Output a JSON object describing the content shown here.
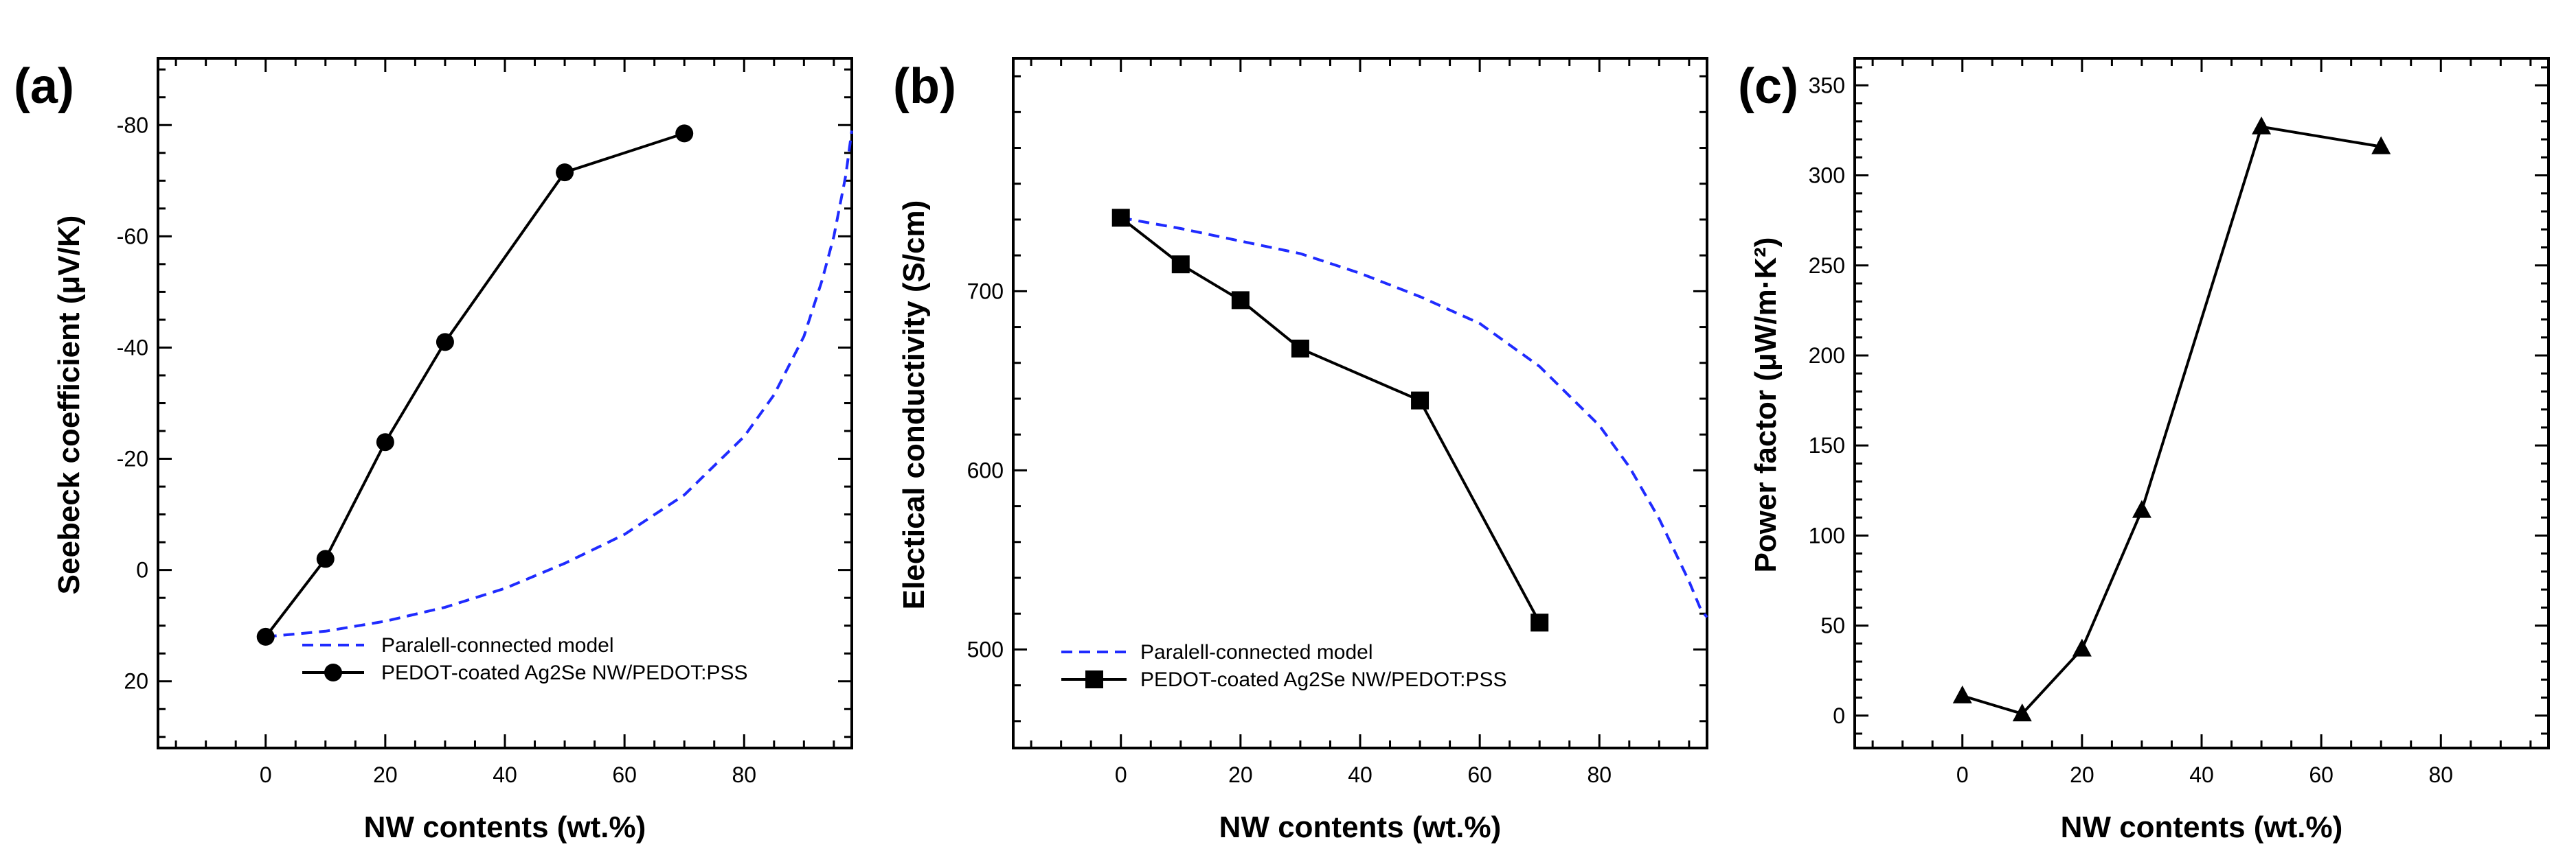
{
  "chart_data": [
    {
      "type": "line",
      "panel_label": "(a)",
      "xlabel": "NW contents (wt.%)",
      "ylabel": "Seebeck coefficient (μV/K)",
      "xlim": [
        -18,
        98
      ],
      "ylim": [
        32,
        -92
      ],
      "x_ticks": [
        0,
        20,
        40,
        60,
        80
      ],
      "y_ticks": [
        -80,
        -60,
        -40,
        -20,
        0,
        20
      ],
      "y_tick_labels": [
        "-80",
        "-60",
        "-40",
        "-20",
        "0",
        "20"
      ],
      "x_tick_labels": [
        "0",
        "20",
        "40",
        "60",
        "80"
      ],
      "x_minor_step": 5,
      "y_minor_step": 5,
      "marker": "circle",
      "legend": {
        "placement": "bottom-right",
        "model_label": "Paralell-connected model",
        "data_label": "PEDOT-coated Ag2Se NW/PEDOT:PSS"
      },
      "series": [
        {
          "name": "PEDOT-coated Ag2Se NW/PEDOT:PSS",
          "x": [
            0,
            10,
            20,
            30,
            50,
            70
          ],
          "y": [
            12,
            -2,
            -23,
            -41,
            -71.5,
            -78.5
          ]
        },
        {
          "name": "Paralell-connected model",
          "style": "dashed",
          "x": [
            0,
            10,
            20,
            30,
            40,
            50,
            60,
            70,
            80,
            85,
            90,
            93,
            95,
            97,
            98
          ],
          "y": [
            12,
            11,
            9.2,
            6.7,
            3.3,
            -1.2,
            -6.4,
            -13.5,
            -24,
            -31.5,
            -42,
            -52,
            -60,
            -71,
            -79
          ]
        }
      ]
    },
    {
      "type": "line",
      "panel_label": "(b)",
      "xlabel": "NW contents (wt.%)",
      "ylabel": "Electical conductivity (S/cm)",
      "xlim": [
        -18,
        98
      ],
      "ylim": [
        445,
        830
      ],
      "x_ticks": [
        0,
        20,
        40,
        60,
        80
      ],
      "y_ticks": [
        500,
        600,
        700
      ],
      "y_tick_labels": [
        "500",
        "600",
        "700"
      ],
      "x_tick_labels": [
        "0",
        "20",
        "40",
        "60",
        "80"
      ],
      "x_minor_step": 5,
      "y_minor_step": 20,
      "marker": "square",
      "legend": {
        "placement": "bottom-left",
        "model_label": "Paralell-connected model",
        "data_label": "PEDOT-coated Ag2Se NW/PEDOT:PSS"
      },
      "series": [
        {
          "name": "PEDOT-coated Ag2Se NW/PEDOT:PSS",
          "x": [
            0,
            10,
            20,
            30,
            50,
            70
          ],
          "y": [
            741,
            715,
            695,
            668,
            639,
            515
          ]
        },
        {
          "name": "Paralell-connected model",
          "style": "dashed",
          "x": [
            0,
            10,
            20,
            30,
            40,
            50,
            60,
            70,
            80,
            85,
            90,
            93,
            95,
            97,
            98
          ],
          "y": [
            741,
            735,
            728,
            721,
            710,
            697,
            682,
            658,
            625,
            602,
            573,
            552,
            538,
            522,
            518
          ]
        }
      ]
    },
    {
      "type": "line",
      "panel_label": "(c)",
      "xlabel": "NW contents (wt.%)",
      "ylabel": "Power factor (μW/m·K²)",
      "xlim": [
        -18,
        98
      ],
      "ylim": [
        -18,
        365
      ],
      "x_ticks": [
        0,
        20,
        40,
        60,
        80
      ],
      "y_ticks": [
        0,
        50,
        100,
        150,
        200,
        250,
        300,
        350
      ],
      "y_tick_labels": [
        "0",
        "50",
        "100",
        "150",
        "200",
        "250",
        "300",
        "350"
      ],
      "x_tick_labels": [
        "0",
        "20",
        "40",
        "60",
        "80"
      ],
      "x_minor_step": 5,
      "y_minor_step": 10,
      "marker": "triangle",
      "series": [
        {
          "name": "Power factor",
          "x": [
            0,
            10,
            20,
            30,
            50,
            70
          ],
          "y": [
            11,
            1,
            37,
            114,
            327,
            316
          ]
        }
      ]
    }
  ]
}
